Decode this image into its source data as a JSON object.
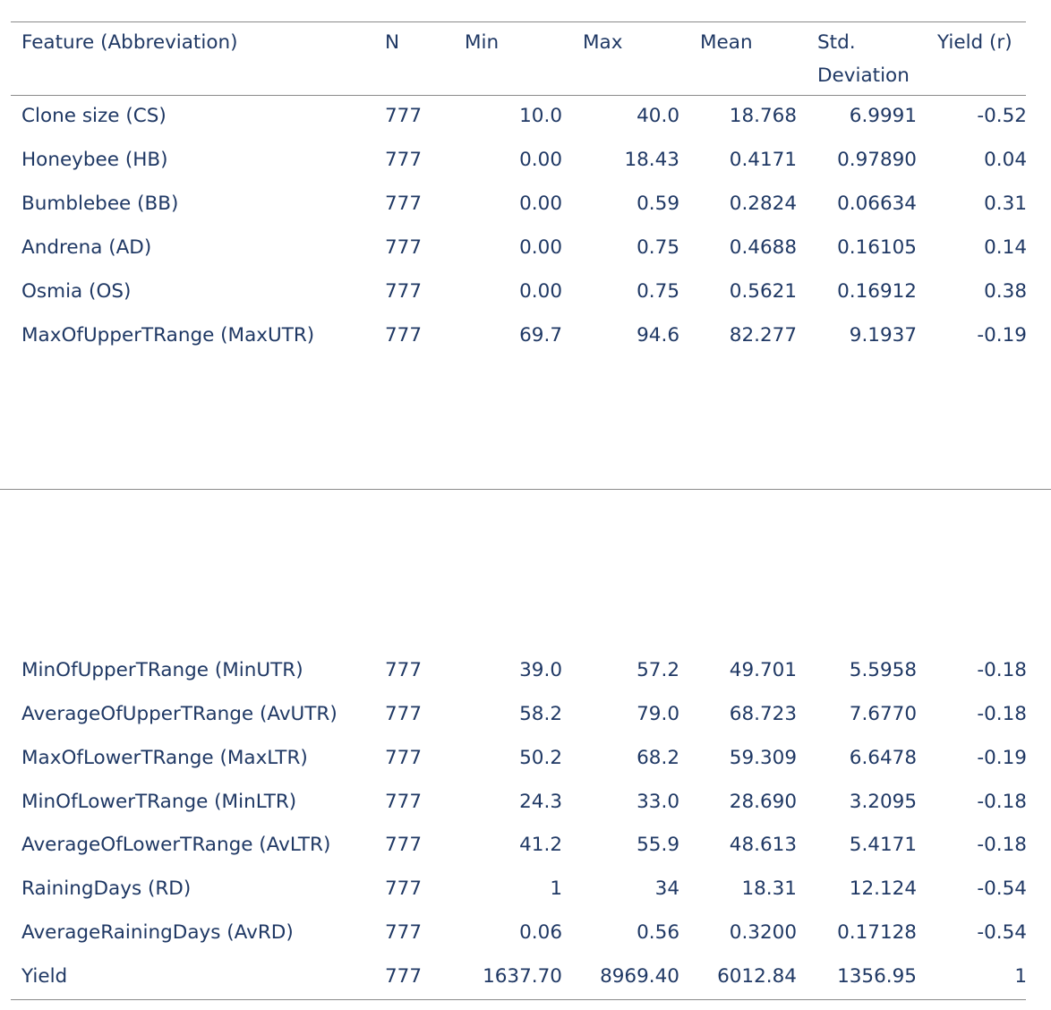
{
  "table": {
    "headers": {
      "feature": "Feature (Abbreviation)",
      "n": "N",
      "min": "Min",
      "max": "Max",
      "mean": "Mean",
      "std_line1": "Std.",
      "std_line2": "Deviation",
      "yield": "Yield (r)"
    },
    "rows": [
      {
        "feature": "Clone size (CS)",
        "n": "777",
        "min": "10.0",
        "max": "40.0",
        "mean": "18.768",
        "std": "6.9991",
        "yield": "-0.52"
      },
      {
        "feature": "Honeybee (HB)",
        "n": "777",
        "min": "0.00",
        "max": "18.43",
        "mean": "0.4171",
        "std": "0.97890",
        "yield": "0.04"
      },
      {
        "feature": "Bumblebee (BB)",
        "n": "777",
        "min": "0.00",
        "max": "0.59",
        "mean": "0.2824",
        "std": "0.06634",
        "yield": "0.31"
      },
      {
        "feature": "Andrena (AD)",
        "n": "777",
        "min": "0.00",
        "max": "0.75",
        "mean": "0.4688",
        "std": "0.16105",
        "yield": "0.14"
      },
      {
        "feature": "Osmia (OS)",
        "n": "777",
        "min": "0.00",
        "max": "0.75",
        "mean": "0.5621",
        "std": "0.16912",
        "yield": "0.38"
      },
      {
        "feature": "MaxOfUpperTRange (MaxUTR)",
        "n": "777",
        "min": "69.7",
        "max": "94.6",
        "mean": "82.277",
        "std": "9.1937",
        "yield": "-0.19"
      },
      {
        "feature": "MinOfUpperTRange (MinUTR)",
        "n": "777",
        "min": "39.0",
        "max": "57.2",
        "mean": "49.701",
        "std": "5.5958",
        "yield": "-0.18"
      },
      {
        "feature": "AverageOfUpperTRange (AvUTR)",
        "n": "777",
        "min": "58.2",
        "max": "79.0",
        "mean": "68.723",
        "std": "7.6770",
        "yield": "-0.18"
      },
      {
        "feature": "MaxOfLowerTRange (MaxLTR)",
        "n": "777",
        "min": "50.2",
        "max": "68.2",
        "mean": "59.309",
        "std": "6.6478",
        "yield": "-0.19"
      },
      {
        "feature": "MinOfLowerTRange (MinLTR)",
        "n": "777",
        "min": "24.3",
        "max": "33.0",
        "mean": "28.690",
        "std": "3.2095",
        "yield": "-0.18"
      },
      {
        "feature": "AverageOfLowerTRange (AvLTR)",
        "n": "777",
        "min": "41.2",
        "max": "55.9",
        "mean": "48.613",
        "std": "5.4171",
        "yield": "-0.18"
      },
      {
        "feature": "RainingDays (RD)",
        "n": "777",
        "min": "1",
        "max": "34",
        "mean": "18.31",
        "std": "12.124",
        "yield": "-0.54"
      },
      {
        "feature": "AverageRainingDays (AvRD)",
        "n": "777",
        "min": "0.06",
        "max": "0.56",
        "mean": "0.3200",
        "std": "0.17128",
        "yield": "-0.54"
      },
      {
        "feature": "Yield",
        "n": "777",
        "min": "1637.70",
        "max": "8969.40",
        "mean": "6012.84",
        "std": "1356.95",
        "yield": "1"
      }
    ]
  }
}
